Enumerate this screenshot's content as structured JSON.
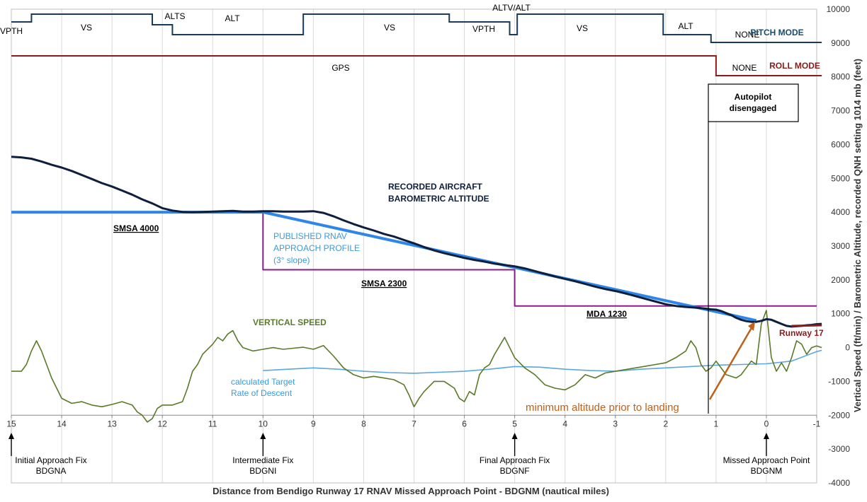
{
  "chart_data": {
    "type": "line",
    "xlabel": "Distance from Bendigo Runway 17 RNAV Missed Approach Point - BDGNM (nautical miles)",
    "ylabel": "Vertical Speed (ft/min) / Barometric Altitude, recorded QNH setting 1014 mb (feet)",
    "xlim": [
      15,
      -1
    ],
    "ylim": [
      -4000,
      10000
    ],
    "x_ticks": [
      15,
      14,
      13,
      12,
      11,
      10,
      9,
      8,
      7,
      6,
      5,
      4,
      3,
      2,
      1,
      0,
      -1
    ],
    "x_tick_labels": [
      "15",
      "14",
      "13",
      "12",
      "11",
      "10",
      "9",
      "8",
      "7",
      "6",
      "5",
      "4",
      "3",
      "2",
      "1",
      "0",
      "-1"
    ],
    "y_ticks": [
      -4000,
      -3000,
      -2000,
      -1000,
      0,
      1000,
      2000,
      3000,
      4000,
      5000,
      6000,
      7000,
      8000,
      9000,
      10000
    ],
    "y_tick_labels": [
      "-4000",
      "-3000",
      "-2000",
      "-1000",
      "0",
      "1000",
      "2000",
      "3000",
      "4000",
      "5000",
      "6000",
      "7000",
      "8000",
      "9000",
      "10000"
    ],
    "grid": "vertical",
    "colors": {
      "altitude": "#0d1f3c",
      "profile": "#2e86e8",
      "target_rod": "#5aa7e0",
      "vertical_speed": "#5a7a2a",
      "minimums": "#8b1a8b",
      "pitch_mode": "#1a3a5a",
      "roll_mode": "#8b1a1a",
      "annotation_arrow": "#c0601a",
      "grid": "#d9d9d9"
    },
    "series": [
      {
        "name": "RECORDED AIRCRAFT BAROMETRIC ALTITUDE",
        "x": [
          15,
          14.8,
          14.6,
          14.4,
          14.2,
          14,
          13.8,
          13.6,
          13.4,
          13.2,
          13,
          12.8,
          12.6,
          12.4,
          12.2,
          12,
          11.8,
          11.6,
          11.4,
          11.2,
          11,
          10.8,
          10.6,
          10.4,
          10.2,
          10,
          9.8,
          9.6,
          9.4,
          9.2,
          9,
          8.8,
          8.6,
          8.4,
          8.2,
          8,
          7.8,
          7.6,
          7.4,
          7.2,
          7,
          6.8,
          6.6,
          6.4,
          6.2,
          6,
          5.8,
          5.6,
          5.4,
          5.2,
          5,
          4.8,
          4.6,
          4.4,
          4.2,
          4,
          3.8,
          3.6,
          3.4,
          3.2,
          3,
          2.8,
          2.6,
          2.4,
          2.2,
          2,
          1.8,
          1.6,
          1.4,
          1.2,
          1.1,
          1,
          0.9,
          0.8,
          0.7,
          0.6,
          0.5,
          0.4,
          0.3,
          0.2,
          0.1,
          0,
          -0.1,
          -0.2,
          -0.3,
          -0.4,
          -0.5,
          -0.6,
          -0.7,
          -0.8,
          -0.9,
          -1.0,
          -1.1
        ],
        "y": [
          5640,
          5620,
          5580,
          5500,
          5400,
          5320,
          5220,
          5100,
          4980,
          4860,
          4760,
          4640,
          4520,
          4380,
          4260,
          4120,
          4050,
          4010,
          4000,
          4010,
          4020,
          4030,
          4040,
          4020,
          4020,
          4030,
          4030,
          4020,
          4020,
          4020,
          4030,
          3980,
          3880,
          3760,
          3650,
          3550,
          3460,
          3360,
          3280,
          3180,
          3080,
          2970,
          2870,
          2790,
          2720,
          2650,
          2590,
          2540,
          2480,
          2440,
          2400,
          2340,
          2260,
          2180,
          2100,
          2030,
          1960,
          1880,
          1800,
          1730,
          1670,
          1600,
          1520,
          1440,
          1360,
          1280,
          1230,
          1200,
          1180,
          1150,
          1130,
          1120,
          1080,
          1020,
          960,
          880,
          820,
          780,
          760,
          760,
          790,
          840,
          820,
          760,
          700,
          640,
          620,
          630,
          640,
          660,
          670,
          690,
          700
        ]
      },
      {
        "name": "PUBLISHED RNAV APPROACH PROFILE (3° slope)",
        "x": [
          15,
          10,
          0.2
        ],
        "y": [
          4000,
          4000,
          800
        ]
      },
      {
        "name": "calculated Target Rate of Descent",
        "x": [
          10,
          9.5,
          9,
          8.5,
          8,
          7.5,
          7,
          6.5,
          6,
          5.5,
          5,
          4.5,
          4,
          3.5,
          3,
          2.5,
          2,
          1.5,
          1,
          0.5,
          0,
          -0.5,
          -1,
          -1.1
        ],
        "y": [
          -680,
          -640,
          -600,
          -640,
          -700,
          -740,
          -760,
          -730,
          -700,
          -640,
          -560,
          -580,
          -640,
          -680,
          -700,
          -640,
          -600,
          -560,
          -520,
          -500,
          -480,
          -400,
          -120,
          -80
        ]
      },
      {
        "name": "VERTICAL SPEED",
        "x": [
          15,
          14.8,
          14.7,
          14.6,
          14.5,
          14.4,
          14.2,
          14,
          13.8,
          13.6,
          13.4,
          13.2,
          13,
          12.8,
          12.6,
          12.5,
          12.4,
          12.3,
          12.2,
          12.1,
          12,
          11.8,
          11.6,
          11.5,
          11.4,
          11.3,
          11.2,
          11,
          10.9,
          10.8,
          10.7,
          10.6,
          10.5,
          10.4,
          10.2,
          10,
          9.8,
          9.6,
          9.4,
          9.2,
          9,
          8.8,
          8.6,
          8.4,
          8.2,
          8,
          7.8,
          7.6,
          7.4,
          7.2,
          7.1,
          7,
          6.9,
          6.8,
          6.6,
          6.4,
          6.2,
          6.1,
          6,
          5.9,
          5.8,
          5.7,
          5.6,
          5.5,
          5.4,
          5.2,
          5,
          4.8,
          4.6,
          4.4,
          4.2,
          4,
          3.8,
          3.6,
          3.4,
          3.2,
          3,
          2.8,
          2.6,
          2.4,
          2.2,
          2,
          1.8,
          1.6,
          1.5,
          1.4,
          1.3,
          1.2,
          1.1,
          1,
          0.8,
          0.6,
          0.5,
          0.4,
          0.3,
          0.2,
          0.1,
          0,
          -0.1,
          -0.2,
          -0.3,
          -0.4,
          -0.5,
          -0.6,
          -0.7,
          -0.8,
          -0.9,
          -1.0,
          -1.1
        ],
        "y": [
          -700,
          -700,
          -500,
          -100,
          200,
          -100,
          -900,
          -1500,
          -1650,
          -1600,
          -1700,
          -1750,
          -1680,
          -1600,
          -1700,
          -1900,
          -2000,
          -2200,
          -2100,
          -1800,
          -1700,
          -1700,
          -1600,
          -1200,
          -700,
          -500,
          -200,
          100,
          300,
          200,
          400,
          500,
          200,
          0,
          -100,
          -50,
          0,
          -50,
          -20,
          10,
          -50,
          60,
          -250,
          -600,
          -800,
          -900,
          -850,
          -900,
          -950,
          -1100,
          -1400,
          -1750,
          -1500,
          -1300,
          -1000,
          -1000,
          -1200,
          -1500,
          -1600,
          -1300,
          -1400,
          -800,
          -600,
          -500,
          -200,
          300,
          -300,
          -600,
          -800,
          -1100,
          -1200,
          -1250,
          -1100,
          -800,
          -900,
          -750,
          -700,
          -650,
          -600,
          -550,
          -500,
          -450,
          -300,
          -100,
          200,
          0,
          -500,
          -700,
          -600,
          -400,
          -800,
          -900,
          -800,
          -600,
          -400,
          -500,
          700,
          1100,
          -300,
          -700,
          -450,
          -700,
          -300,
          200,
          100,
          -200,
          0,
          50,
          0
        ]
      },
      {
        "name": "Minimum segment altitudes (SMSA / MDA)",
        "x": [
          15,
          10,
          10,
          5,
          5,
          -1
        ],
        "y": [
          4000,
          4000,
          2300,
          2300,
          1230,
          1230
        ]
      }
    ],
    "pitch_mode": {
      "label": "PITCH MODE",
      "segments": [
        {
          "mode": "VPTH",
          "x_start": 15,
          "x_end": 14.6,
          "level": "low"
        },
        {
          "mode": "VS",
          "x_start": 14.6,
          "x_end": 12.2,
          "level": "high"
        },
        {
          "mode": "ALTS",
          "x_start": 12.2,
          "x_end": 11.8,
          "level": "mid"
        },
        {
          "mode": "ALT",
          "x_start": 11.8,
          "x_end": 9.2,
          "level": "low"
        },
        {
          "mode": "VS",
          "x_start": 9.2,
          "x_end": 6.3,
          "level": "high"
        },
        {
          "mode": "VPTH",
          "x_start": 6.3,
          "x_end": 5.1,
          "level": "mid"
        },
        {
          "mode": "ALTV/ALT",
          "x_start": 5.1,
          "x_end": 4.95,
          "level": "low"
        },
        {
          "mode": "VS",
          "x_start": 4.95,
          "x_end": 2.05,
          "level": "high"
        },
        {
          "mode": "ALT",
          "x_start": 2.05,
          "x_end": 1.1,
          "level": "mid"
        },
        {
          "mode": "NONE",
          "x_start": 1.1,
          "x_end": -1.1,
          "level": "low"
        }
      ],
      "labels": [
        "VPTH",
        "VS",
        "ALTS",
        "ALT",
        "VS",
        "VPTH",
        "ALTV/ALT",
        "VS",
        "ALT",
        "NONE"
      ]
    },
    "roll_mode": {
      "label": "ROLL MODE",
      "segments": [
        {
          "mode": "GPS",
          "x_start": 15,
          "x_end": 1.0
        },
        {
          "mode": "NONE",
          "x_start": 1.0,
          "x_end": -1.1
        }
      ],
      "labels": [
        "GPS",
        "NONE"
      ]
    },
    "annotations": {
      "altitude_label_1": "RECORDED AIRCRAFT",
      "altitude_label_2": "BAROMETRIC ALTITUDE",
      "profile_label_1": "PUBLISHED RNAV",
      "profile_label_2": "APPROACH PROFILE",
      "profile_label_3": "(3° slope)",
      "vs_label": "VERTICAL SPEED",
      "target_label_1": "calculated Target",
      "target_label_2": "Rate of Descent",
      "smsa4000": "SMSA 4000",
      "smsa2300": "SMSA 2300",
      "mda": "MDA 1230",
      "runway": "Runway 17",
      "autopilot_1": "Autopilot",
      "autopilot_2": "disengaged",
      "min_alt": "minimum altitude prior to landing"
    },
    "fixes": [
      {
        "x": 15,
        "name": "Initial Approach Fix",
        "id": "BDGNA"
      },
      {
        "x": 10,
        "name": "Intermediate Fix",
        "id": "BDGNI"
      },
      {
        "x": 5,
        "name": "Final Approach Fix",
        "id": "BDGNF"
      },
      {
        "x": 0,
        "name": "Missed Approach Point",
        "id": "BDGNM"
      }
    ]
  }
}
